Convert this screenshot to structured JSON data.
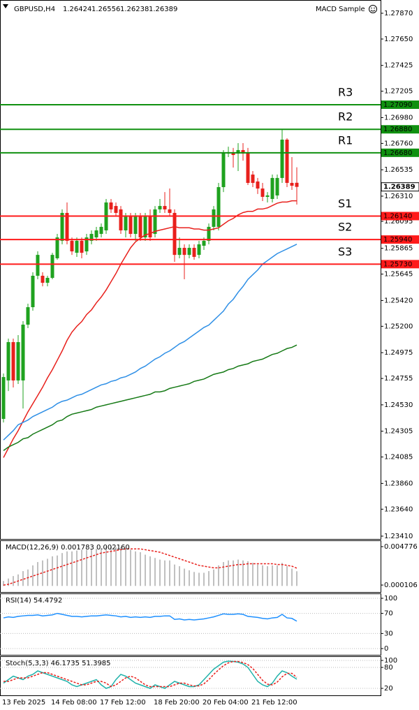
{
  "header": {
    "symbol": "GBPUSD,H4",
    "expert": "MACD Sample"
  },
  "chart_data": [
    {
      "type": "candlestick",
      "categories": [
        "13 Feb 2025",
        null,
        null,
        null,
        null,
        null,
        null,
        null,
        null,
        null,
        "14 Feb 08:00",
        null,
        null,
        null,
        null,
        null,
        null,
        null,
        null,
        null,
        "17 Feb 12:00",
        null,
        null,
        null,
        null,
        null,
        null,
        null,
        null,
        null,
        null,
        "18 Feb 20:00",
        null,
        null,
        null,
        null,
        null,
        null,
        null,
        null,
        null,
        "20 Feb 04:00",
        null,
        null,
        null,
        null,
        null,
        null,
        null,
        null,
        null,
        "21 Feb 12:00",
        null,
        null,
        null,
        null,
        null,
        null,
        null,
        null,
        null
      ],
      "open": [
        1.2441,
        1.24738,
        1.25065,
        1.24738,
        1.24738,
        1.25214,
        1.25363,
        1.25631,
        1.25631,
        1.25571,
        1.25613,
        1.2578,
        1.25929,
        1.26167,
        1.25929,
        1.25827,
        1.25929,
        1.25839,
        1.25929,
        1.25958,
        1.25988,
        1.26018,
        1.26256,
        1.26226,
        1.26197,
        1.26018,
        1.26137,
        1.25988,
        1.26137,
        1.25958,
        1.26137,
        1.25988,
        1.26197,
        1.26226,
        1.26197,
        1.26167,
        1.25809,
        1.25869,
        1.25809,
        1.25869,
        1.25809,
        1.25887,
        1.25929,
        1.26048,
        1.26048,
        1.26387,
        1.26673,
        1.26685,
        1.26673,
        1.26703,
        1.26685,
        1.26494,
        1.26435,
        1.26375,
        1.26304,
        1.26286,
        1.26316,
        1.26465,
        1.26792,
        1.26423,
        1.26424
      ],
      "high": [
        1.24797,
        1.25095,
        1.25095,
        1.25125,
        1.25244,
        1.25393,
        1.25661,
        1.25839,
        1.25661,
        1.25631,
        1.25827,
        1.25988,
        1.26197,
        1.26256,
        1.25958,
        1.25958,
        1.25958,
        1.25988,
        1.26018,
        1.26048,
        1.26077,
        1.26286,
        1.26286,
        1.26256,
        1.26226,
        1.26167,
        1.26167,
        1.26167,
        1.26167,
        1.26167,
        1.26197,
        1.26226,
        1.26286,
        1.26345,
        1.26375,
        1.26197,
        1.25958,
        1.25899,
        1.25899,
        1.25899,
        1.25929,
        1.25958,
        1.26077,
        1.26226,
        1.26423,
        1.26703,
        1.26732,
        1.26721,
        1.26762,
        1.26762,
        1.26721,
        1.26524,
        1.26465,
        1.26423,
        1.26345,
        1.26494,
        1.26494,
        1.26881,
        1.26804,
        1.26643,
        1.26556
      ],
      "low": [
        1.2438,
        1.24648,
        1.24678,
        1.24708,
        1.24499,
        1.25184,
        1.25333,
        1.25601,
        1.25541,
        1.25541,
        1.25601,
        1.25768,
        1.25899,
        1.25899,
        1.25809,
        1.25792,
        1.2578,
        1.25809,
        1.25899,
        1.25929,
        1.25958,
        1.25988,
        1.26167,
        1.26137,
        1.25988,
        1.25958,
        1.25958,
        1.25929,
        1.25929,
        1.25929,
        1.25929,
        1.25958,
        1.26167,
        1.26167,
        1.26137,
        1.2575,
        1.2578,
        1.25601,
        1.2578,
        1.25768,
        1.2578,
        1.25851,
        1.25899,
        1.26018,
        1.26018,
        1.26345,
        1.26643,
        1.26554,
        1.26524,
        1.26613,
        1.26405,
        1.26387,
        1.26328,
        1.26268,
        1.26256,
        1.26256,
        1.26286,
        1.26423,
        1.26387,
        1.26363,
        1.26238
      ],
      "close": [
        1.24767,
        1.25065,
        1.24738,
        1.25065,
        1.25214,
        1.25363,
        1.25631,
        1.25809,
        1.25571,
        1.25613,
        1.25809,
        1.25958,
        1.26167,
        1.25929,
        1.25839,
        1.25929,
        1.25827,
        1.25958,
        1.25988,
        1.26018,
        1.26048,
        1.26256,
        1.26197,
        1.26167,
        1.26018,
        1.26137,
        1.25988,
        1.26137,
        1.25958,
        1.26137,
        1.25958,
        1.26197,
        1.26226,
        1.26197,
        1.26167,
        1.25809,
        1.25869,
        1.25809,
        1.25869,
        1.25792,
        1.25899,
        1.25929,
        1.26048,
        1.26197,
        1.26387,
        1.26685,
        1.26685,
        1.26661,
        1.26703,
        1.26673,
        1.26423,
        1.26423,
        1.26375,
        1.26304,
        1.26316,
        1.26465,
        1.26465,
        1.26792,
        1.26423,
        1.26399,
        1.26389
      ],
      "up_color": "#1fa21f",
      "down_color": "#e8201c",
      "series": [
        {
          "color": "#e8201c",
          "values": [
            1.2408,
            1.2416,
            1.2424,
            1.2431,
            1.2439,
            1.2447,
            1.2454,
            1.2461,
            1.2468,
            1.2476,
            1.2483,
            1.2491,
            1.2499,
            1.2508,
            1.2515,
            1.252,
            1.2524,
            1.253,
            1.2534,
            1.254,
            1.2545,
            1.2551,
            1.2558,
            1.2565,
            1.2573,
            1.258,
            1.2587,
            1.2592,
            1.2595,
            1.2598,
            1.2599,
            1.2601,
            1.2602,
            1.2603,
            1.2604,
            1.2605,
            1.2604,
            1.2604,
            1.2604,
            1.2603,
            1.2603,
            1.2602,
            1.2602,
            1.2603,
            1.2604,
            1.2607,
            1.261,
            1.2612,
            1.2615,
            1.2617,
            1.2618,
            1.2618,
            1.262,
            1.262,
            1.2621,
            1.2623,
            1.2625,
            1.2626,
            1.2626,
            1.2627,
            1.2627
          ]
        },
        {
          "color": "#2e8fe6",
          "values": [
            1.2423,
            1.2427,
            1.2431,
            1.2436,
            1.2438,
            1.244,
            1.2443,
            1.2445,
            1.2447,
            1.2449,
            1.2451,
            1.2454,
            1.2456,
            1.2457,
            1.2459,
            1.2461,
            1.2462,
            1.2464,
            1.2466,
            1.2468,
            1.247,
            1.2471,
            1.2473,
            1.2474,
            1.2476,
            1.2477,
            1.2479,
            1.2481,
            1.2484,
            1.2486,
            1.2489,
            1.2492,
            1.2494,
            1.2497,
            1.2499,
            1.2502,
            1.2505,
            1.2507,
            1.251,
            1.2513,
            1.2516,
            1.2519,
            1.2521,
            1.2525,
            1.2529,
            1.2533,
            1.2539,
            1.2543,
            1.2549,
            1.2554,
            1.256,
            1.2564,
            1.2568,
            1.2573,
            1.2576,
            1.2579,
            1.2582,
            1.2584,
            1.2586,
            1.2588,
            1.259
          ]
        },
        {
          "color": "#167a16",
          "values": [
            1.2414,
            1.2417,
            1.2419,
            1.2421,
            1.2424,
            1.2425,
            1.2428,
            1.243,
            1.2432,
            1.2434,
            1.2436,
            1.2439,
            1.244,
            1.2443,
            1.2445,
            1.2446,
            1.2447,
            1.2448,
            1.2449,
            1.2451,
            1.2452,
            1.2453,
            1.2454,
            1.2455,
            1.2456,
            1.2457,
            1.2458,
            1.2459,
            1.246,
            1.2461,
            1.2462,
            1.2464,
            1.2464,
            1.2465,
            1.2467,
            1.2468,
            1.2469,
            1.247,
            1.2471,
            1.2473,
            1.2474,
            1.2475,
            1.2477,
            1.2479,
            1.248,
            1.2481,
            1.2483,
            1.2484,
            1.2486,
            1.2487,
            1.2488,
            1.249,
            1.2491,
            1.2492,
            1.2494,
            1.2496,
            1.2497,
            1.2499,
            1.2501,
            1.2502,
            1.2504
          ]
        }
      ],
      "levels": [
        {
          "name": "R3",
          "value": 1.2709,
          "label": "1.27090",
          "color": "#109010"
        },
        {
          "name": "R2",
          "value": 1.2688,
          "label": "1.26880",
          "color": "#109010"
        },
        {
          "name": "R1",
          "value": 1.2668,
          "label": "1.26680",
          "color": "#109010"
        },
        {
          "name": "S1",
          "value": 1.2614,
          "label": "1.26140",
          "color": "#ff1a1a"
        },
        {
          "name": "S2",
          "value": 1.2594,
          "label": "1.25940",
          "color": "#ff1a1a"
        },
        {
          "name": "S3",
          "value": 1.2573,
          "label": "1.25730",
          "color": "#ff1a1a"
        }
      ],
      "ylim": [
        1.23386,
        1.27983
      ],
      "yticks": [
        {
          "value": 1.2787,
          "label": "1.27870"
        },
        {
          "value": 1.2765,
          "label": "1.27650"
        },
        1.27425,
        1.27205,
        {
          "value": 1.2698,
          "label": "1.26980"
        },
        {
          "value": 1.2676,
          "label": "1.26760"
        },
        1.26535,
        {
          "value": 1.2631,
          "label": "1.26310"
        },
        1.26095,
        1.25865,
        1.25645,
        {
          "value": 1.2542,
          "label": "1.25420"
        },
        {
          "value": 1.252,
          "label": "1.25200"
        },
        1.24975,
        1.24755,
        {
          "value": 1.2453,
          "label": "1.24530"
        },
        1.24305,
        1.24085,
        {
          "value": 1.2386,
          "label": "1.23860"
        },
        {
          "value": 1.2364,
          "label": "1.23640"
        },
        {
          "value": 1.2341,
          "label": "1.23410"
        }
      ],
      "grid": false
    },
    {
      "type": "macd",
      "title": "MACD(12,26,9) 0.001783 0.002160",
      "color": "#c0c0c0",
      "values": [
        0.0006,
        0.0009,
        0.0012,
        0.0014,
        0.0018,
        0.002,
        0.0025,
        0.0029,
        0.0031,
        0.0033,
        0.0036,
        0.0037,
        0.004,
        0.0042,
        0.0042,
        0.0043,
        0.0044,
        0.0044,
        0.0045,
        0.0045,
        0.0046,
        0.0048,
        0.0048,
        0.0047,
        0.0047,
        0.0045,
        0.0044,
        0.0042,
        0.0041,
        0.0038,
        0.0036,
        0.0034,
        0.0032,
        0.0031,
        0.0031,
        0.0026,
        0.0024,
        0.0021,
        0.0019,
        0.0017,
        0.0016,
        0.0016,
        0.0018,
        0.002,
        0.0025,
        0.0029,
        0.0031,
        0.0031,
        0.0032,
        0.0031,
        0.003,
        0.0028,
        0.0026,
        0.0025,
        0.0024,
        0.0025,
        0.0025,
        0.0028,
        0.0024,
        0.0021,
        0.001783
      ],
      "series": [
        {
          "color": "#e8201c",
          "dashed": true,
          "values": [
            0.0001,
            0.0002,
            0.0004,
            0.0006,
            0.0008,
            0.001,
            0.0012,
            0.0014,
            0.0016,
            0.0018,
            0.002,
            0.0022,
            0.0024,
            0.0026,
            0.0028,
            0.003,
            0.0032,
            0.0034,
            0.0036,
            0.0038,
            0.004,
            0.0041,
            0.0042,
            0.0043,
            0.0044,
            0.0045,
            0.0045,
            0.0045,
            0.0045,
            0.0044,
            0.0043,
            0.0042,
            0.0041,
            0.0039,
            0.0037,
            0.0035,
            0.0033,
            0.0031,
            0.0029,
            0.0027,
            0.0025,
            0.0024,
            0.0023,
            0.0022,
            0.0022,
            0.0023,
            0.0024,
            0.0025,
            0.0026,
            0.0026,
            0.0027,
            0.0027,
            0.0027,
            0.0027,
            0.0027,
            0.0027,
            0.0026,
            0.0026,
            0.0025,
            0.0024,
            0.00216
          ]
        }
      ],
      "ylim": [
        -0.00074,
        0.00554
      ],
      "yticks": [
        0.004776,
        0.000106
      ],
      "grid": false
    },
    {
      "type": "line",
      "title": "RSI(14) 54.4792",
      "series": [
        {
          "color": "#1e90ff",
          "values": [
            61,
            63,
            62,
            64,
            65,
            66,
            66,
            67,
            65,
            66,
            67,
            70,
            68,
            66,
            64,
            64,
            63,
            64,
            65,
            65,
            66,
            67,
            66,
            65,
            63,
            64,
            62,
            63,
            62,
            63,
            62,
            64,
            64,
            65,
            65,
            58,
            59,
            57,
            58,
            57,
            58,
            59,
            61,
            63,
            66,
            69,
            68,
            68,
            69,
            68,
            64,
            63,
            62,
            60,
            59,
            61,
            62,
            68,
            61,
            60,
            54.4792
          ]
        }
      ],
      "ylim": [
        -12.5,
        109.7
      ],
      "yticks": [
        100,
        70,
        30,
        0
      ],
      "grid": true
    },
    {
      "type": "line",
      "title": "Stoch(5,3,3) 46.1735 51.3985",
      "series": [
        {
          "color": "#20b2aa",
          "values": [
            35,
            45,
            55,
            50,
            45,
            55,
            60,
            70,
            65,
            60,
            55,
            50,
            45,
            40,
            30,
            25,
            30,
            35,
            40,
            45,
            30,
            20,
            25,
            45,
            60,
            55,
            45,
            35,
            30,
            25,
            20,
            30,
            25,
            20,
            30,
            40,
            35,
            30,
            25,
            25,
            30,
            45,
            60,
            75,
            85,
            95,
            98,
            97,
            95,
            90,
            80,
            60,
            40,
            30,
            25,
            35,
            55,
            70,
            65,
            55,
            46.1735
          ]
        },
        {
          "color": "#e8201c",
          "dashed": true,
          "values": [
            40,
            40,
            45,
            50,
            50,
            50,
            55,
            60,
            65,
            65,
            60,
            55,
            50,
            45,
            40,
            35,
            30,
            30,
            35,
            40,
            40,
            35,
            25,
            30,
            40,
            50,
            55,
            50,
            40,
            30,
            25,
            25,
            25,
            25,
            25,
            30,
            35,
            35,
            30,
            27,
            27,
            33,
            45,
            60,
            73,
            85,
            93,
            97,
            97,
            94,
            88,
            77,
            60,
            43,
            32,
            30,
            38,
            53,
            63,
            63,
            51.3985
          ]
        }
      ],
      "ylim": [
        0,
        112
      ],
      "yticks": [
        100,
        80,
        20
      ],
      "grid": true
    }
  ]
}
